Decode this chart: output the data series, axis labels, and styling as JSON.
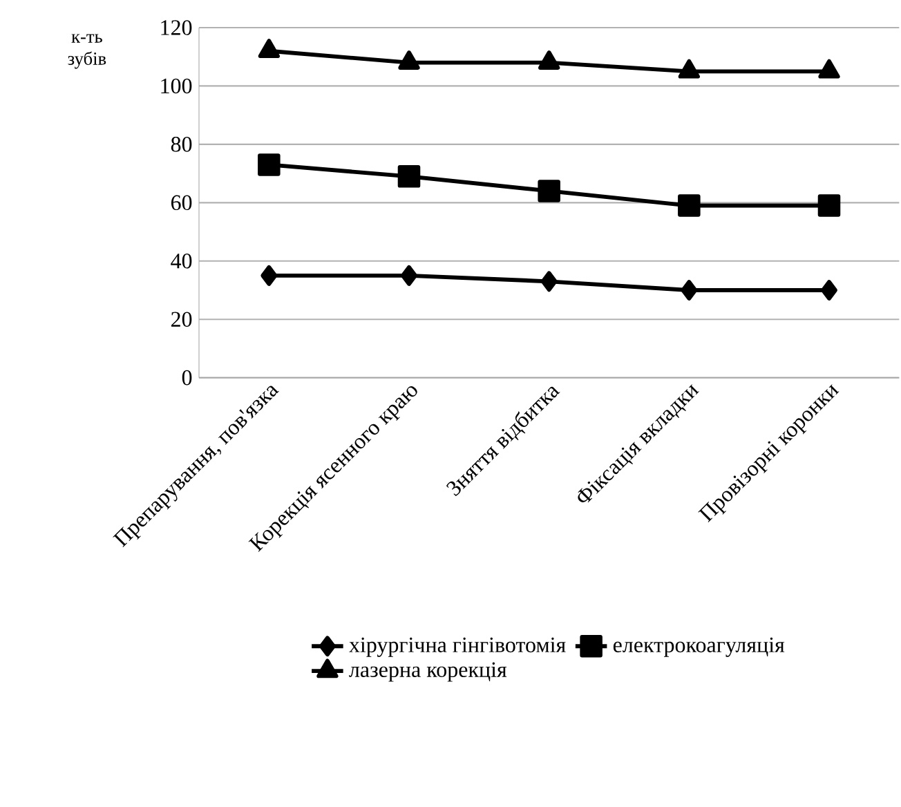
{
  "chart_data": {
    "type": "line",
    "ylabel": "к-ть зубів",
    "categories": [
      "Препарування, пов'язка",
      "Корекція ясенного краю",
      "Зняття відбитка",
      "Фіксація вкладки",
      "Провізорні коронки"
    ],
    "series": [
      {
        "name": "хірургічна гінгівотомія",
        "color": "#000000",
        "marker": "diamond",
        "values": [
          35,
          35,
          33,
          30,
          30
        ]
      },
      {
        "name": "електрокоагуляція",
        "color": "#000000",
        "marker": "square",
        "values": [
          73,
          69,
          64,
          59,
          59
        ]
      },
      {
        "name": "лазерна корекція",
        "color": "#000000",
        "marker": "triangle",
        "values": [
          112,
          108,
          108,
          105,
          105
        ]
      }
    ],
    "ylim": [
      0,
      120
    ],
    "yticks": [
      0,
      20,
      40,
      60,
      80,
      100,
      120
    ],
    "grid": "y",
    "legend": "bottom",
    "line_style": "solid"
  }
}
